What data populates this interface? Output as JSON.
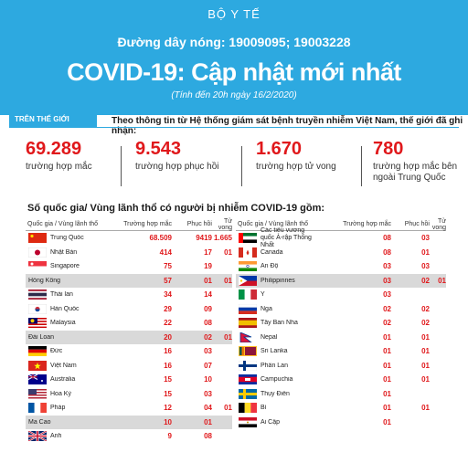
{
  "header": {
    "org": "BỘ Y TẾ",
    "hotline": "Đường dây nóng: 19009095; 19003228",
    "title": "COVID-19: Cập nhật mới nhất",
    "as_of": "(Tính đến 20h ngày 16/2/2020)"
  },
  "world": {
    "tag": "TRÊN THẾ GIỚI",
    "intro": "Theo thông tin từ Hệ thống giám sát bệnh truyền nhiễm Việt Nam, thế giới đã ghi nhận:",
    "stats": [
      {
        "value": "69.289",
        "label": "trường hợp mắc"
      },
      {
        "value": "9.543",
        "label": "trường hợp phục hồi"
      },
      {
        "value": "1.670",
        "label": "trường hợp tử vong"
      },
      {
        "value": "780",
        "label": "trường hợp mắc bên ngoài Trung Quốc"
      }
    ]
  },
  "countries_heading": "Số quốc gia/ Vùng lãnh thổ có người bị nhiễm COVID-19 gồm:",
  "table": {
    "columns": [
      "Quốc gia / Vùng lãnh thổ",
      "Trường hợp mắc",
      "Phục hồi",
      "Tử vong"
    ],
    "left": [
      {
        "name": "Trung Quốc",
        "cases": "68.509",
        "rec": "9419",
        "dead": "1.665",
        "flag": "china"
      },
      {
        "name": "Nhật Bản",
        "cases": "414",
        "rec": "17",
        "dead": "01",
        "flag": "japan"
      },
      {
        "name": "Singapore",
        "cases": "75",
        "rec": "19",
        "dead": "",
        "flag": "singapore"
      },
      {
        "name": "Hồng Kông",
        "cases": "57",
        "rec": "01",
        "dead": "01",
        "flag": ""
      },
      {
        "name": "Thái lan",
        "cases": "34",
        "rec": "14",
        "dead": "",
        "flag": "thailand"
      },
      {
        "name": "Hàn Quốc",
        "cases": "29",
        "rec": "09",
        "dead": "",
        "flag": "korea"
      },
      {
        "name": "Malaysia",
        "cases": "22",
        "rec": "08",
        "dead": "",
        "flag": "malaysia"
      },
      {
        "name": "Đài Loan",
        "cases": "20",
        "rec": "02",
        "dead": "01",
        "flag": ""
      },
      {
        "name": "Đức",
        "cases": "16",
        "rec": "03",
        "dead": "",
        "flag": "germany"
      },
      {
        "name": "Việt Nam",
        "cases": "16",
        "rec": "07",
        "dead": "",
        "flag": "vietnam"
      },
      {
        "name": "Australia",
        "cases": "15",
        "rec": "10",
        "dead": "",
        "flag": "australia"
      },
      {
        "name": "Hoa Kỳ",
        "cases": "15",
        "rec": "03",
        "dead": "",
        "flag": "usa"
      },
      {
        "name": "Pháp",
        "cases": "12",
        "rec": "04",
        "dead": "01",
        "flag": "france"
      },
      {
        "name": "Ma Cao",
        "cases": "10",
        "rec": "01",
        "dead": "",
        "flag": ""
      },
      {
        "name": "Anh",
        "cases": "9",
        "rec": "08",
        "dead": "",
        "flag": "uk"
      }
    ],
    "right": [
      {
        "name": "Các tiểu vương quốc Ả-rập Thống Nhất",
        "cases": "08",
        "rec": "03",
        "dead": "",
        "flag": "uae"
      },
      {
        "name": "Canada",
        "cases": "08",
        "rec": "01",
        "dead": "",
        "flag": "canada"
      },
      {
        "name": "Ấn Độ",
        "cases": "03",
        "rec": "03",
        "dead": "",
        "flag": "india"
      },
      {
        "name": "Philippinnes",
        "cases": "03",
        "rec": "02",
        "dead": "01",
        "flag": "philippines"
      },
      {
        "name": "Ý",
        "cases": "03",
        "rec": "",
        "dead": "",
        "flag": "italy"
      },
      {
        "name": "Nga",
        "cases": "02",
        "rec": "02",
        "dead": "",
        "flag": "russia"
      },
      {
        "name": "Tây Ban Nha",
        "cases": "02",
        "rec": "02",
        "dead": "",
        "flag": "spain"
      },
      {
        "name": "Nepal",
        "cases": "01",
        "rec": "01",
        "dead": "",
        "flag": "nepal"
      },
      {
        "name": "Sri Lanka",
        "cases": "01",
        "rec": "01",
        "dead": "",
        "flag": "srilanka"
      },
      {
        "name": "Phần Lan",
        "cases": "01",
        "rec": "01",
        "dead": "",
        "flag": "finland"
      },
      {
        "name": "Campuchia",
        "cases": "01",
        "rec": "01",
        "dead": "",
        "flag": "cambodia"
      },
      {
        "name": "Thụy Điển",
        "cases": "01",
        "rec": "",
        "dead": "",
        "flag": "sweden"
      },
      {
        "name": "Bỉ",
        "cases": "01",
        "rec": "01",
        "dead": "",
        "flag": "belgium"
      },
      {
        "name": "Ai Cập",
        "cases": "01",
        "rec": "",
        "dead": "",
        "flag": "egypt"
      }
    ]
  },
  "colors": {
    "accent": "#2da9e0",
    "value_red": "#e0181b",
    "row_shade": "#d9d9d9"
  }
}
